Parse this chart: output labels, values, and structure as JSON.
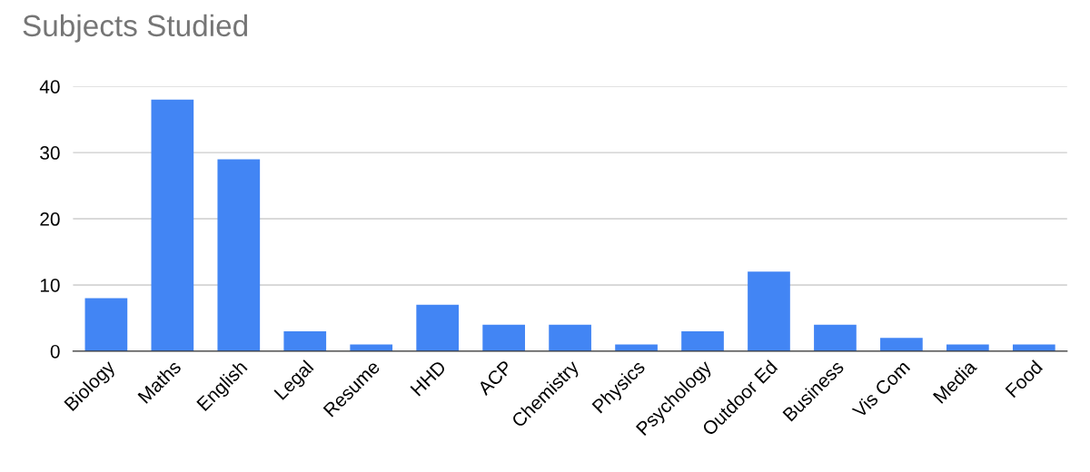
{
  "chart_data": {
    "type": "bar",
    "title": "Subjects Studied",
    "categories": [
      "Biology",
      "Maths",
      "English",
      "Legal",
      "Resume",
      "HHD",
      "ACP",
      "Chemistry",
      "Physics",
      "Psychology",
      "Outdoor Ed",
      "Business",
      "Vis Com",
      "Media",
      "Food"
    ],
    "values": [
      8,
      38,
      29,
      3,
      1,
      7,
      4,
      4,
      1,
      3,
      12,
      4,
      2,
      1,
      1
    ],
    "color": "#4285f4",
    "ylim": [
      0,
      40
    ],
    "yticks": [
      0,
      10,
      20,
      30,
      40
    ],
    "grid": "y",
    "legend": false
  }
}
